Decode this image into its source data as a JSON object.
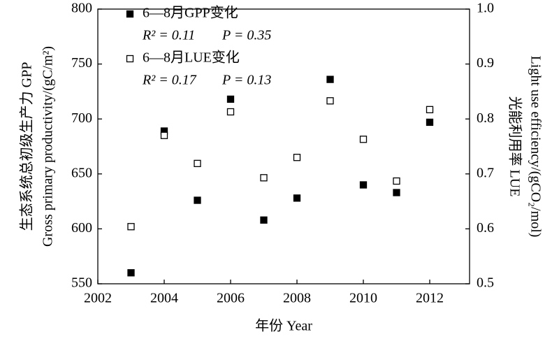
{
  "chart_data": {
    "type": "scatter",
    "x": [
      2003,
      2004,
      2005,
      2006,
      2007,
      2008,
      2009,
      2010,
      2011,
      2012
    ],
    "series": [
      {
        "name": "6—8月GPP变化",
        "color": "#000000",
        "marker": "filled-square",
        "values": [
          560,
          689,
          626,
          718,
          608,
          628,
          736,
          640,
          633,
          697
        ],
        "stats": [
          "R² = 0.11",
          "P = 0.35"
        ]
      },
      {
        "name": "6—8月LUE变化",
        "color": "#000000",
        "marker": "open-square",
        "axis": "y2",
        "values": [
          0.604,
          0.77,
          0.719,
          0.813,
          0.693,
          0.73,
          0.833,
          0.763,
          0.687,
          0.817
        ],
        "stats": [
          "R² = 0.17",
          "P = 0.13"
        ]
      }
    ],
    "xlabel": "年份 Year",
    "ylabel": [
      "生态系统总初级生产力 GPP",
      "Gross primary productivity/(gC/m²)"
    ],
    "y2label": [
      "光能利用率 LUE",
      "Light use efficiency/(gCO₂/mol)"
    ],
    "xlim": [
      2002,
      2013.2
    ],
    "xticks": [
      2002,
      2004,
      2006,
      2008,
      2010,
      2012
    ],
    "ylim": [
      550,
      800
    ],
    "yticks": [
      550,
      600,
      650,
      700,
      750,
      800
    ],
    "y2lim": [
      0.5,
      1.0
    ],
    "y2ticks": [
      0.5,
      0.6,
      0.7,
      0.8,
      0.9,
      {
        "value": 1.0,
        "label": "1.0"
      }
    ]
  }
}
